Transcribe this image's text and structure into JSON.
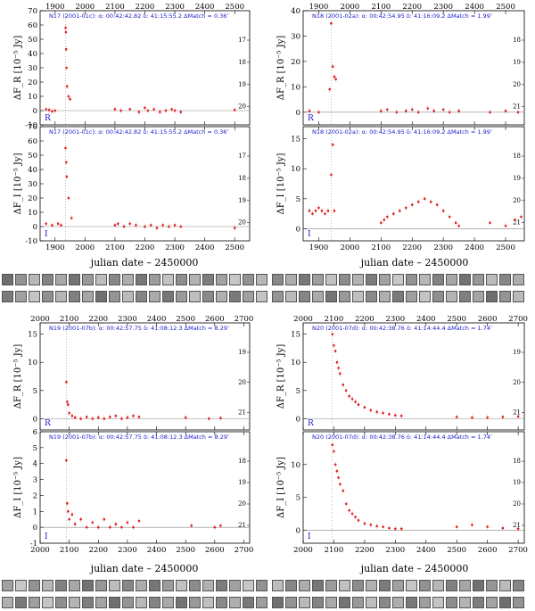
{
  "chart_data": [
    {
      "id": "N17-R",
      "type": "scatter",
      "band": "R",
      "header": "N17 (2001-01c):",
      "alpha": "α: 00:42:42.82",
      "delta": "δ: 41:15:55.2",
      "dmatch": "Δ",
      "dmatch_sub": "Match",
      "dmatch_val": "= 0.36″",
      "ylabel": "ΔF_R [10⁻⁵ Jy]",
      "xlim": [
        1850,
        2550
      ],
      "ylim": [
        -10,
        70
      ],
      "xticks": [
        1900,
        2000,
        2100,
        2200,
        2300,
        2400,
        2500
      ],
      "yticks": [
        -10,
        0,
        10,
        20,
        30,
        40,
        50,
        60,
        70
      ],
      "top_axis_labels": true,
      "bottom_axis_labels": false,
      "mag_labels": [
        "17",
        "18",
        "19",
        "20"
      ],
      "mag_values": [
        17,
        18,
        19,
        20
      ],
      "peak_line_x": 1935,
      "points": [
        [
          1935,
          58
        ],
        [
          1936,
          55
        ],
        [
          1937,
          43
        ],
        [
          1938,
          30
        ],
        [
          1940,
          17
        ],
        [
          1945,
          10
        ],
        [
          1950,
          8
        ],
        [
          1870,
          1
        ],
        [
          1880,
          0.5
        ],
        [
          1890,
          -0.5
        ],
        [
          1900,
          0
        ],
        [
          2100,
          1
        ],
        [
          2120,
          0
        ],
        [
          2150,
          1
        ],
        [
          2180,
          -1
        ],
        [
          2200,
          2
        ],
        [
          2210,
          0
        ],
        [
          2230,
          1
        ],
        [
          2250,
          -1
        ],
        [
          2270,
          0
        ],
        [
          2290,
          1
        ],
        [
          2300,
          0
        ],
        [
          2320,
          -1
        ],
        [
          2500,
          0.5
        ]
      ]
    },
    {
      "id": "N17-I",
      "type": "scatter",
      "band": "I",
      "header": "N17 (2001-01c):",
      "alpha": "α: 00:42:42.82",
      "delta": "δ: 41:15:55.2",
      "dmatch": "Δ",
      "dmatch_sub": "Match",
      "dmatch_val": "= 0.36″",
      "ylabel": "ΔF_I [10⁻⁵ Jy]",
      "xlim": [
        1850,
        2550
      ],
      "ylim": [
        -10,
        70
      ],
      "xticks": [
        1900,
        2000,
        2100,
        2200,
        2300,
        2400,
        2500
      ],
      "yticks": [
        -10,
        0,
        10,
        20,
        30,
        40,
        50,
        60,
        70
      ],
      "top_axis_labels": false,
      "bottom_axis_labels": true,
      "mag_labels": [
        "17",
        "18",
        "19",
        "20"
      ],
      "mag_values": [
        17,
        18,
        19,
        20
      ],
      "peak_line_x": 1935,
      "points": [
        [
          1935,
          55
        ],
        [
          1937,
          45
        ],
        [
          1939,
          35
        ],
        [
          1945,
          20
        ],
        [
          1955,
          6
        ],
        [
          1870,
          2
        ],
        [
          1890,
          1
        ],
        [
          1910,
          2
        ],
        [
          1920,
          1
        ],
        [
          2100,
          1
        ],
        [
          2110,
          2
        ],
        [
          2130,
          0
        ],
        [
          2150,
          2
        ],
        [
          2170,
          1
        ],
        [
          2200,
          0
        ],
        [
          2220,
          1
        ],
        [
          2240,
          -1
        ],
        [
          2260,
          1
        ],
        [
          2280,
          0
        ],
        [
          2300,
          1
        ],
        [
          2320,
          0
        ],
        [
          2500,
          -1
        ]
      ]
    },
    {
      "id": "N18-R",
      "type": "scatter",
      "band": "R",
      "header": "N18 (2001-02a):",
      "alpha": "α: 00:42:54.95",
      "delta": "δ: 41:16:09.2",
      "dmatch": "Δ",
      "dmatch_sub": "Match",
      "dmatch_val": "= 1.99″",
      "ylabel": "ΔF_R [10⁻⁵ Jy]",
      "xlim": [
        1850,
        2560
      ],
      "ylim": [
        -5,
        40
      ],
      "xticks": [
        1900,
        2000,
        2100,
        2200,
        2300,
        2400,
        2500
      ],
      "yticks": [
        0,
        10,
        20,
        30,
        40
      ],
      "top_axis_labels": true,
      "bottom_axis_labels": false,
      "mag_labels": [
        "18",
        "19",
        "20",
        "21"
      ],
      "mag_values": [
        18,
        19,
        20,
        21
      ],
      "peak_line_x": 1940,
      "points": [
        [
          1940,
          35
        ],
        [
          1945,
          18
        ],
        [
          1950,
          14
        ],
        [
          1955,
          13
        ],
        [
          1935,
          9
        ],
        [
          1870,
          0.5
        ],
        [
          1900,
          0
        ],
        [
          2100,
          0.5
        ],
        [
          2120,
          1
        ],
        [
          2150,
          0
        ],
        [
          2180,
          0.5
        ],
        [
          2200,
          1
        ],
        [
          2220,
          0
        ],
        [
          2250,
          1.5
        ],
        [
          2270,
          0.5
        ],
        [
          2300,
          1
        ],
        [
          2320,
          0
        ],
        [
          2350,
          0.5
        ],
        [
          2450,
          0
        ],
        [
          2500,
          0.5
        ],
        [
          2540,
          0
        ]
      ]
    },
    {
      "id": "N18-I",
      "type": "scatter",
      "band": "I",
      "header": "N18 (2001-02a):",
      "alpha": "α: 00:42:54.95",
      "delta": "δ: 41:16:09.2",
      "dmatch": "Δ",
      "dmatch_sub": "Match",
      "dmatch_val": "= 1.99″",
      "ylabel": "ΔF_I [10⁻⁵ Jy]",
      "xlim": [
        1850,
        2560
      ],
      "ylim": [
        -2,
        17
      ],
      "xticks": [
        1900,
        2000,
        2100,
        2200,
        2300,
        2400,
        2500
      ],
      "yticks": [
        0,
        5,
        10,
        15
      ],
      "top_axis_labels": false,
      "bottom_axis_labels": true,
      "mag_labels": [
        "18",
        "19",
        "20",
        "21"
      ],
      "mag_values": [
        18,
        19,
        20,
        21
      ],
      "peak_line_x": 1940,
      "points": [
        [
          1870,
          3
        ],
        [
          1880,
          2.5
        ],
        [
          1890,
          3
        ],
        [
          1900,
          3.5
        ],
        [
          1910,
          3
        ],
        [
          1920,
          2.5
        ],
        [
          1930,
          3
        ],
        [
          1940,
          9
        ],
        [
          1945,
          14
        ],
        [
          1950,
          3
        ],
        [
          2100,
          1
        ],
        [
          2110,
          1.5
        ],
        [
          2120,
          2
        ],
        [
          2140,
          2.5
        ],
        [
          2160,
          3
        ],
        [
          2180,
          3.5
        ],
        [
          2200,
          4
        ],
        [
          2220,
          4.5
        ],
        [
          2240,
          5
        ],
        [
          2260,
          4.5
        ],
        [
          2280,
          4
        ],
        [
          2300,
          3
        ],
        [
          2320,
          2
        ],
        [
          2340,
          1
        ],
        [
          2350,
          0.5
        ],
        [
          2450,
          1
        ],
        [
          2500,
          0.5
        ],
        [
          2530,
          1.5
        ],
        [
          2550,
          2
        ]
      ]
    },
    {
      "id": "N19-R",
      "type": "scatter",
      "band": "R",
      "header": "N19 (2001-07b):",
      "alpha": "α: 00:42:57.75",
      "delta": "δ: 41:08:12.3",
      "dmatch": "Δ",
      "dmatch_sub": "Match",
      "dmatch_val": "= 8.29″",
      "ylabel": "ΔF_R [10⁻⁵ Jy]",
      "xlim": [
        2000,
        2720
      ],
      "ylim": [
        -2,
        17
      ],
      "xticks": [
        2000,
        2100,
        2200,
        2300,
        2400,
        2500,
        2600,
        2700
      ],
      "yticks": [
        0,
        5,
        10,
        15
      ],
      "top_axis_labels": true,
      "bottom_axis_labels": false,
      "mag_labels": [
        "19",
        "20",
        "21"
      ],
      "mag_values": [
        19,
        20,
        21
      ],
      "peak_line_x": 2090,
      "points": [
        [
          2090,
          6.5
        ],
        [
          2093,
          3
        ],
        [
          2096,
          2.5
        ],
        [
          2100,
          1
        ],
        [
          2110,
          0.5
        ],
        [
          2120,
          0.2
        ],
        [
          2140,
          0
        ],
        [
          2160,
          0.3
        ],
        [
          2180,
          0
        ],
        [
          2200,
          0.2
        ],
        [
          2220,
          0
        ],
        [
          2240,
          0.3
        ],
        [
          2260,
          0.5
        ],
        [
          2280,
          0
        ],
        [
          2300,
          0.2
        ],
        [
          2320,
          0.5
        ],
        [
          2340,
          0.3
        ],
        [
          2500,
          0.2
        ],
        [
          2580,
          0
        ],
        [
          2620,
          0.1
        ]
      ]
    },
    {
      "id": "N19-I",
      "type": "scatter",
      "band": "I",
      "header": "N19 (2001-07b):",
      "alpha": "α: 00:42:57.75",
      "delta": "δ: 41:08:12.3",
      "dmatch": "Δ",
      "dmatch_sub": "Match",
      "dmatch_val": "= 8.29″",
      "ylabel": "ΔF_I [10⁻⁵ Jy]",
      "xlim": [
        2000,
        2720
      ],
      "ylim": [
        -1,
        6
      ],
      "xticks": [
        2000,
        2100,
        2200,
        2300,
        2400,
        2500,
        2600,
        2700
      ],
      "yticks": [
        -1,
        0,
        1,
        2,
        3,
        4,
        5,
        6
      ],
      "top_axis_labels": false,
      "bottom_axis_labels": true,
      "mag_labels": [
        "18",
        "19",
        "20",
        "21"
      ],
      "mag_values": [
        18,
        19,
        20,
        21
      ],
      "peak_line_x": 2090,
      "points": [
        [
          2090,
          4.2
        ],
        [
          2093,
          1.5
        ],
        [
          2096,
          1
        ],
        [
          2100,
          0.5
        ],
        [
          2110,
          0.8
        ],
        [
          2120,
          0.2
        ],
        [
          2140,
          0.5
        ],
        [
          2160,
          0
        ],
        [
          2180,
          0.3
        ],
        [
          2200,
          0
        ],
        [
          2220,
          0.5
        ],
        [
          2240,
          0
        ],
        [
          2260,
          0.2
        ],
        [
          2280,
          0
        ],
        [
          2300,
          0.3
        ],
        [
          2320,
          0
        ],
        [
          2340,
          0.4
        ],
        [
          2520,
          0.1
        ],
        [
          2600,
          0
        ],
        [
          2620,
          0.1
        ]
      ]
    },
    {
      "id": "N20-R",
      "type": "scatter",
      "band": "R",
      "header": "N20 (2001-07d):",
      "alpha": "α: 00:42:38.76",
      "delta": "δ: 41:14:44.4",
      "dmatch": "Δ",
      "dmatch_sub": "Match",
      "dmatch_val": "= 1.74″",
      "ylabel": "ΔF_R [10⁻⁵ Jy]",
      "xlim": [
        2000,
        2720
      ],
      "ylim": [
        -2,
        17
      ],
      "xticks": [
        2000,
        2100,
        2200,
        2300,
        2400,
        2500,
        2600,
        2700
      ],
      "yticks": [
        0,
        5,
        10,
        15
      ],
      "top_axis_labels": true,
      "bottom_axis_labels": false,
      "mag_labels": [
        "19",
        "20",
        "21"
      ],
      "mag_values": [
        19,
        20,
        21
      ],
      "peak_line_x": 2095,
      "points": [
        [
          2095,
          15
        ],
        [
          2100,
          13
        ],
        [
          2105,
          12
        ],
        [
          2110,
          10
        ],
        [
          2115,
          9
        ],
        [
          2120,
          8
        ],
        [
          2130,
          6
        ],
        [
          2140,
          5
        ],
        [
          2150,
          4
        ],
        [
          2160,
          3.5
        ],
        [
          2170,
          3
        ],
        [
          2180,
          2.5
        ],
        [
          2200,
          2
        ],
        [
          2220,
          1.5
        ],
        [
          2240,
          1.2
        ],
        [
          2260,
          1
        ],
        [
          2280,
          0.8
        ],
        [
          2300,
          0.6
        ],
        [
          2320,
          0.5
        ],
        [
          2500,
          0.3
        ],
        [
          2550,
          0.2
        ],
        [
          2600,
          0.2
        ],
        [
          2650,
          0.3
        ],
        [
          2700,
          0.4
        ]
      ]
    },
    {
      "id": "N20-I",
      "type": "scatter",
      "band": "I",
      "header": "N20 (2001-07d):",
      "alpha": "α: 00:42:38.76",
      "delta": "δ: 41:14:44.4",
      "dmatch": "Δ",
      "dmatch_sub": "Match",
      "dmatch_val": "= 1.74″",
      "ylabel": "ΔF_I [10⁻⁵ Jy]",
      "xlim": [
        2000,
        2720
      ],
      "ylim": [
        -2,
        15
      ],
      "xticks": [
        2000,
        2100,
        2200,
        2300,
        2400,
        2500,
        2600,
        2700
      ],
      "yticks": [
        0,
        5,
        10
      ],
      "top_axis_labels": false,
      "bottom_axis_labels": true,
      "mag_labels": [
        "18",
        "19",
        "20",
        "21"
      ],
      "mag_values": [
        18,
        19,
        20,
        21
      ],
      "peak_line_x": 2095,
      "points": [
        [
          2095,
          13
        ],
        [
          2100,
          12
        ],
        [
          2105,
          10
        ],
        [
          2110,
          9
        ],
        [
          2115,
          8
        ],
        [
          2120,
          7
        ],
        [
          2130,
          6
        ],
        [
          2140,
          4
        ],
        [
          2150,
          3
        ],
        [
          2160,
          2.5
        ],
        [
          2170,
          2
        ],
        [
          2180,
          1.5
        ],
        [
          2200,
          1
        ],
        [
          2220,
          0.8
        ],
        [
          2240,
          0.6
        ],
        [
          2260,
          0.5
        ],
        [
          2280,
          0.3
        ],
        [
          2300,
          0.2
        ],
        [
          2320,
          0.2
        ],
        [
          2500,
          0.5
        ],
        [
          2550,
          0.8
        ],
        [
          2600,
          0.5
        ],
        [
          2650,
          0.3
        ],
        [
          2700,
          0.2
        ]
      ]
    }
  ],
  "xlabels": [
    "julian date – 2450000",
    "julian date – 2450000",
    "julian date – 2450000",
    "julian date – 2450000"
  ],
  "colors": {
    "points": "#e02020",
    "errorbars": "#f0a0a0",
    "text_blue": "#1a1acc",
    "axis": "#000000",
    "zero_line": "#888888"
  }
}
